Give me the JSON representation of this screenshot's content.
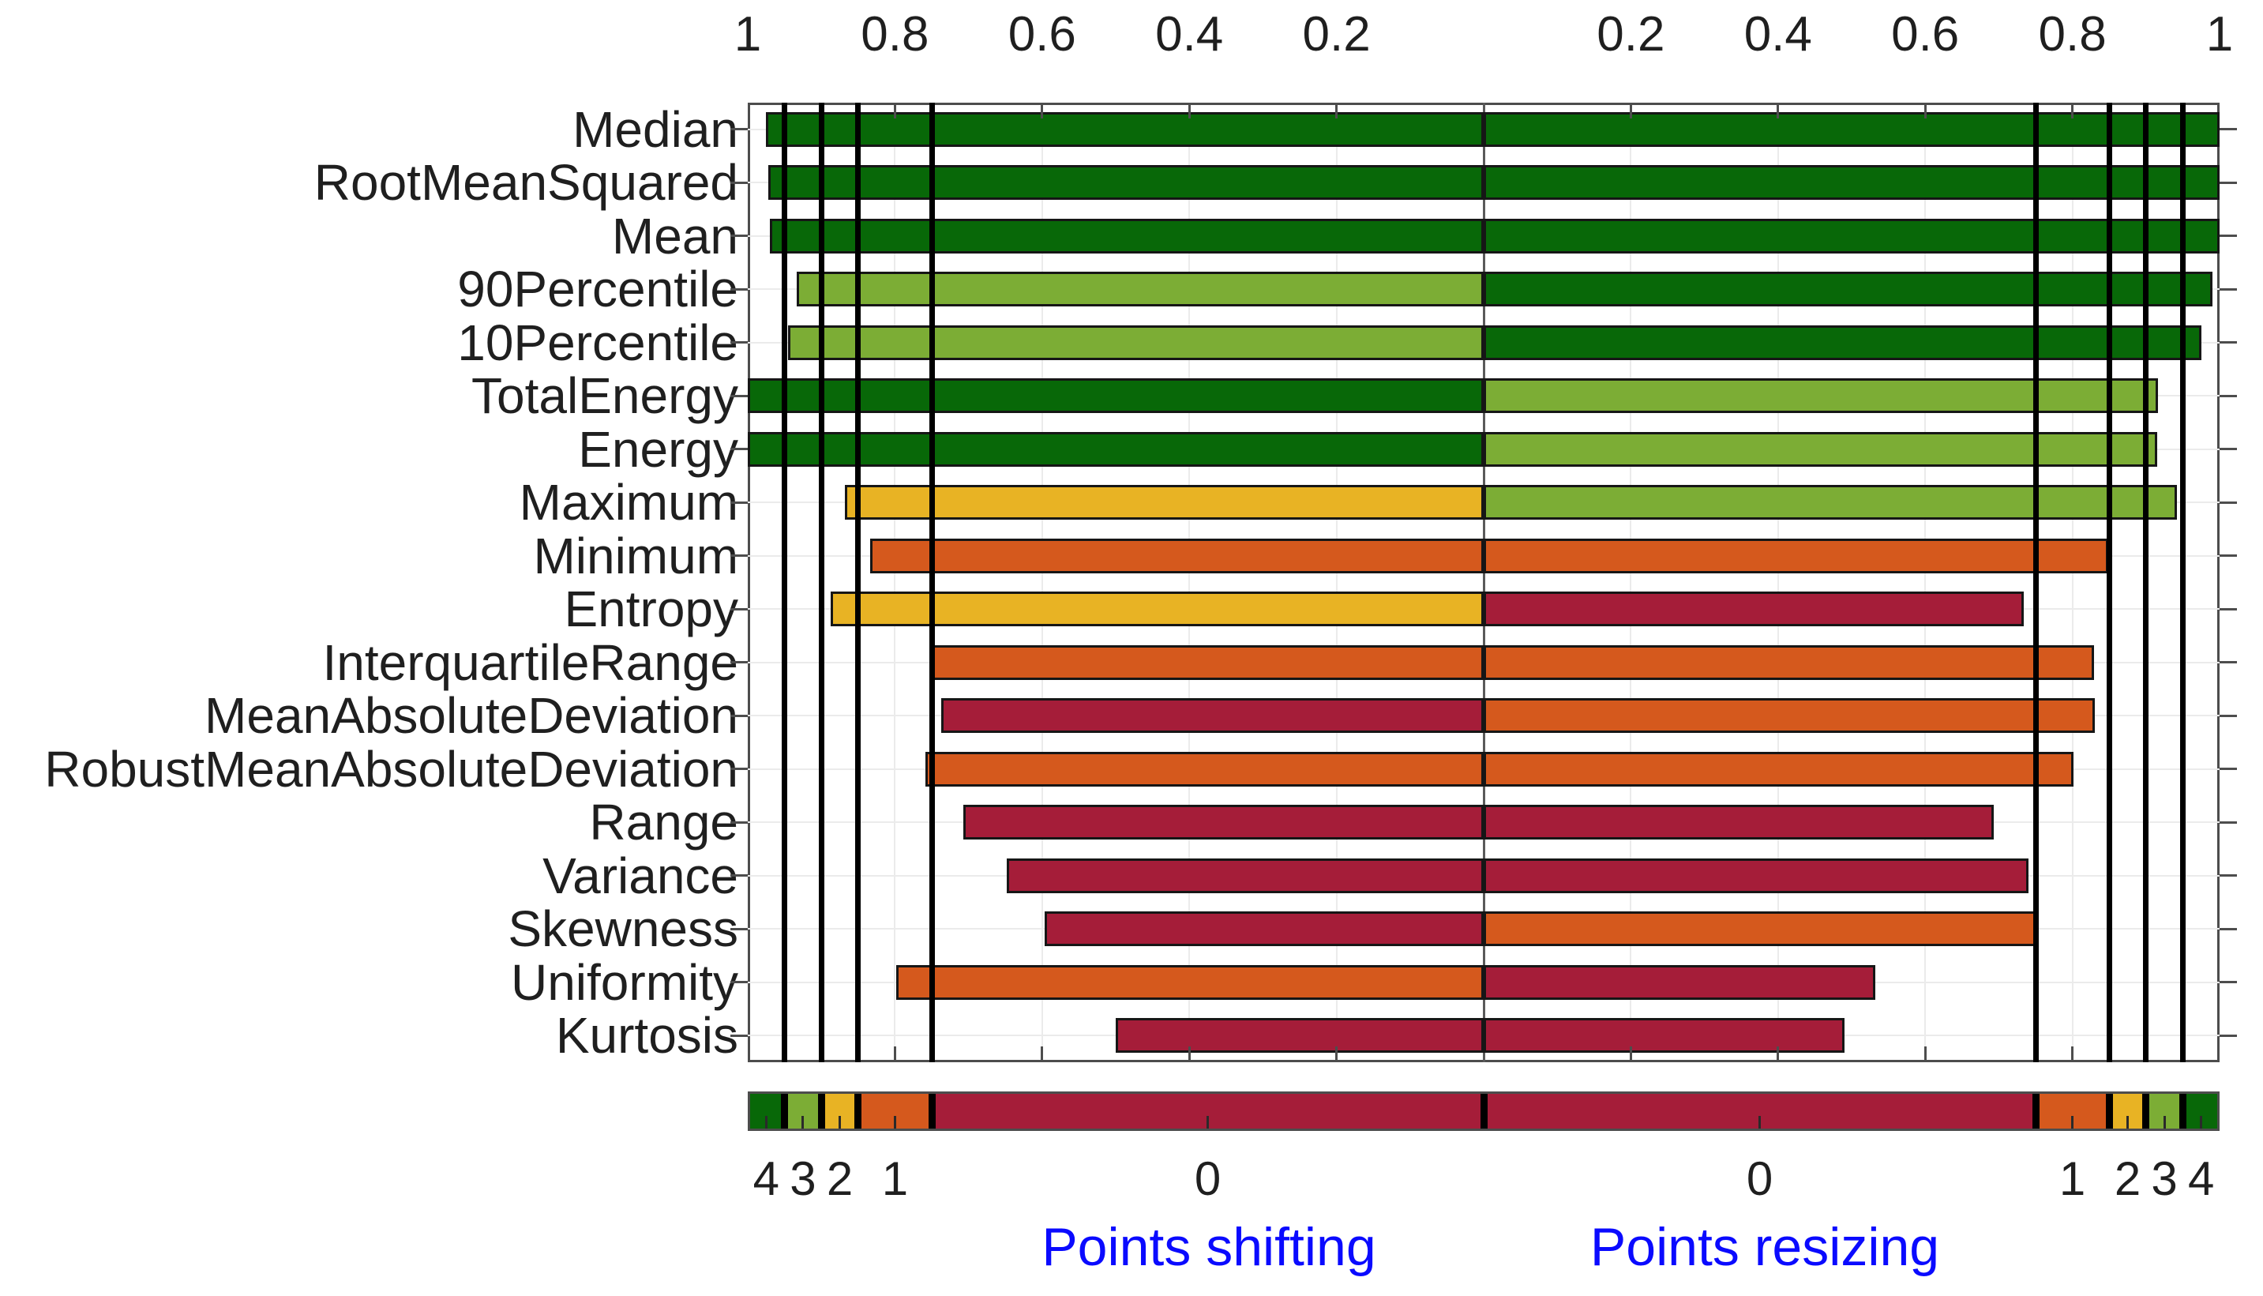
{
  "figure": {
    "background": "#ffffff"
  },
  "chart_data": {
    "type": "bar",
    "orientation": "horizontal-diverging",
    "title": "",
    "categories": [
      "Median",
      "RootMeanSquared",
      "Mean",
      "90Percentile",
      "10Percentile",
      "TotalEnergy",
      "Energy",
      "Maximum",
      "Minimum",
      "Entropy",
      "InterquartileRange",
      "MeanAbsoluteDeviation",
      "RobustMeanAbsoluteDeviation",
      "Range",
      "Variance",
      "Skewness",
      "Uniformity",
      "Kurtosis"
    ],
    "series": [
      {
        "name": "Points shifting",
        "side": "left",
        "values": [
          0.975,
          0.972,
          0.97,
          0.933,
          0.945,
          1.0,
          1.0,
          0.868,
          0.834,
          0.887,
          0.752,
          0.737,
          0.759,
          0.707,
          0.648,
          0.597,
          0.798,
          0.5
        ]
      },
      {
        "name": "Points resizing",
        "side": "right",
        "values": [
          1.0,
          1.0,
          1.0,
          0.99,
          0.975,
          0.916,
          0.915,
          0.942,
          0.849,
          0.734,
          0.829,
          0.83,
          0.802,
          0.693,
          0.74,
          0.754,
          0.532,
          0.49
        ]
      }
    ],
    "xlabel_left": "Points shifting",
    "xlabel_right": "Points resizing",
    "xlabel_color": "#0a0aff",
    "value_axis": {
      "range": [
        0,
        1
      ],
      "ticks": [
        0.2,
        0.4,
        0.6,
        0.8,
        1
      ],
      "tick_labels": [
        "0.2",
        "0.4",
        "0.6",
        "0.8",
        "1"
      ],
      "mirrored_from_center": true,
      "grid": true
    },
    "thresholds": [
      0.75,
      0.85,
      0.9,
      0.95
    ],
    "palette": {
      "4": "#086808",
      "3": "#7cad35",
      "2": "#e8b324",
      "1": "#d5591d",
      "0": "#a51d39"
    },
    "colorbar": {
      "segment_boundaries": [
        1,
        0.95,
        0.9,
        0.85,
        0.75,
        0
      ],
      "segment_scores": [
        "4",
        "3",
        "2",
        "1",
        "0"
      ],
      "labels_left": [
        "4",
        "3",
        "2",
        "1",
        "0"
      ],
      "labels_right": [
        "0",
        "1",
        "2",
        "3",
        "4"
      ]
    }
  }
}
